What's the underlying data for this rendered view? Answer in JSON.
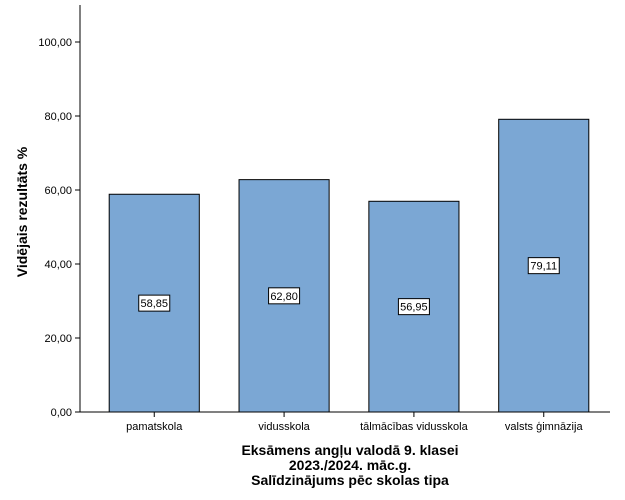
{
  "chart_data": {
    "type": "bar",
    "categories": [
      "pamatskola",
      "vidusskola",
      "tālmācības vidusskola",
      "valsts ģimnāzija"
    ],
    "values": [
      58.85,
      62.8,
      56.95,
      79.11
    ],
    "data_labels": [
      "58,85",
      "62,80",
      "56,95",
      "79,11"
    ],
    "ylabel": "Vidējais rezultāts %",
    "xlabel_lines": [
      "Eksāmens angļu valodā 9. klasei",
      "2023./2024. māc.g.",
      "Salīdzinājums pēc skolas tipa"
    ],
    "ylim": [
      0,
      110
    ],
    "yticks": [
      0,
      20,
      40,
      60,
      80,
      100
    ],
    "ytick_labels": [
      "0,00",
      "20,00",
      "40,00",
      "60,00",
      "80,00",
      "100,00"
    ],
    "grid": false,
    "bar_color": "#7ba7d4",
    "bar_edge_color": "#000000"
  }
}
